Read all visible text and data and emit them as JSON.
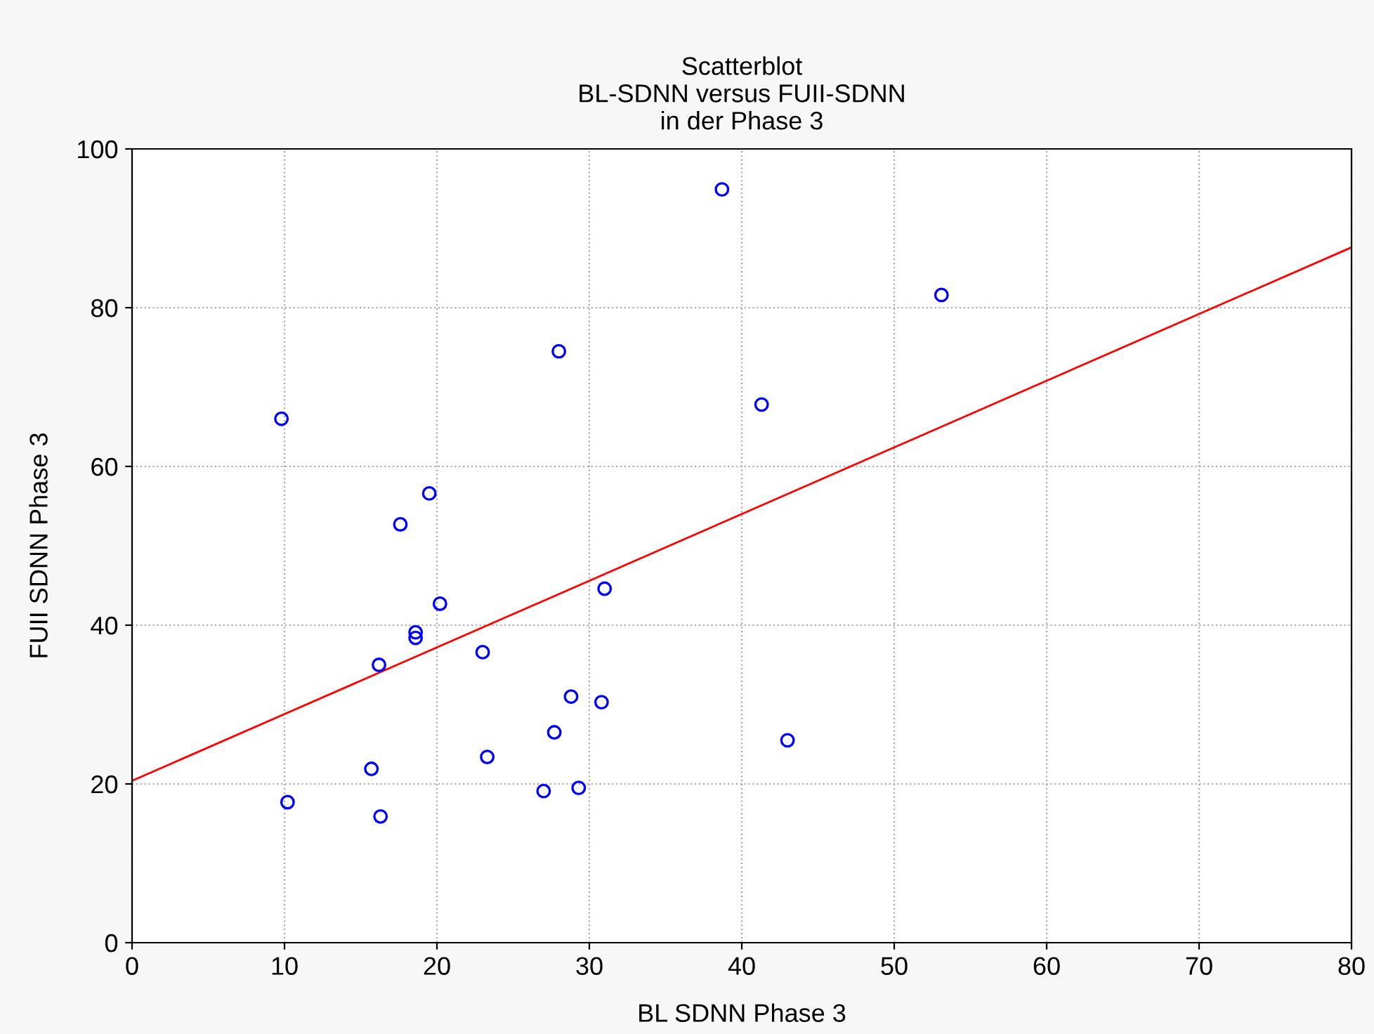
{
  "chart_data": {
    "type": "scatter",
    "title": "Scatterblot\nBL-SDNN versus FUII-SDNN\nin der Phase 3",
    "xlabel": "BL SDNN Phase 3",
    "ylabel": "FUII SDNN Phase 3",
    "xlim": [
      0,
      80
    ],
    "xticks": [
      0,
      10,
      20,
      30,
      40,
      50,
      60,
      70,
      80
    ],
    "ylim": [
      0,
      100
    ],
    "yticks": [
      0,
      20,
      40,
      60,
      80,
      100
    ],
    "grid": true,
    "series": [
      {
        "marker": "circle",
        "color": "#0000ff",
        "x": [
          9.8,
          10.2,
          38.7,
          53.1,
          28.0,
          41.3,
          19.5,
          17.6,
          20.2,
          31.0,
          18.6,
          18.6,
          16.2,
          23.0,
          28.8,
          30.8,
          27.7,
          43.0,
          23.3,
          15.7,
          16.3,
          27.0,
          29.3
        ],
        "values": [
          66.0,
          17.7,
          94.9,
          81.6,
          74.5,
          67.8,
          56.6,
          52.7,
          42.7,
          44.6,
          39.1,
          38.4,
          35.0,
          36.6,
          31.0,
          30.3,
          26.5,
          25.5,
          23.4,
          21.9,
          15.9,
          19.1,
          19.5
        ]
      },
      {
        "type": "line",
        "marker": "none",
        "color": "#ff0000",
        "x": [
          0,
          80
        ],
        "values": [
          20.4,
          87.6
        ]
      }
    ]
  }
}
